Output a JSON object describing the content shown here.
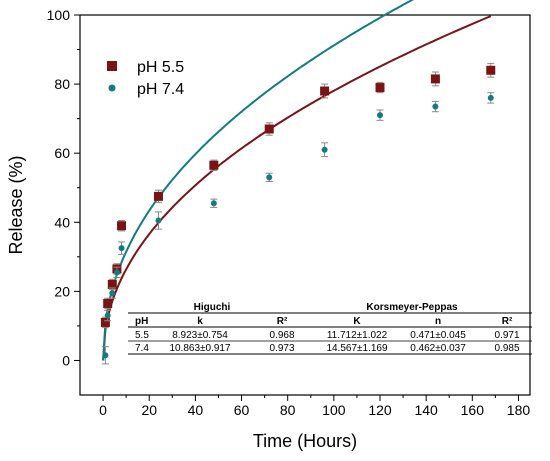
{
  "chart_data": {
    "type": "scatter",
    "xlabel": "Time (Hours)",
    "ylabel": "Release (%)",
    "xlim": [
      -10,
      185
    ],
    "ylim": [
      -10,
      100
    ],
    "x_ticks": [
      0,
      20,
      40,
      60,
      80,
      100,
      120,
      140,
      160,
      180
    ],
    "y_ticks": [
      0,
      20,
      40,
      60,
      80,
      100
    ],
    "legend_position": "top-left",
    "series": [
      {
        "name": "pH 5.5",
        "color": "#7a1414",
        "marker": "square",
        "x": [
          1,
          2,
          4,
          6,
          8,
          24,
          48,
          72,
          96,
          120,
          144,
          168
        ],
        "y": [
          11,
          16.5,
          22,
          26.5,
          39,
          47.5,
          56.5,
          67,
          78,
          79,
          81.5,
          84
        ],
        "error": [
          1.5,
          1.5,
          1.5,
          1.5,
          1.5,
          1.8,
          1.5,
          1.8,
          2,
          1.5,
          2,
          2
        ],
        "fit": {
          "k": 8.923,
          "n": 0.471
        }
      },
      {
        "name": "pH 7.4",
        "color": "#137c80",
        "marker": "circle",
        "x": [
          1,
          2,
          4,
          6,
          8,
          24,
          48,
          72,
          96,
          120,
          144,
          168
        ],
        "y": [
          1.5,
          13,
          19.5,
          25.5,
          32.5,
          40.5,
          45.5,
          53,
          61,
          71,
          73.5,
          76
        ],
        "error": [
          2.5,
          1.5,
          1.5,
          1.5,
          1.8,
          2.5,
          1.2,
          1.2,
          2,
          1.5,
          1.5,
          1.5
        ],
        "fit": {
          "k": 10.863,
          "n": 0.462
        }
      }
    ],
    "table": {
      "group_headers": [
        "Higuchi",
        "Korsmeyer-Peppas"
      ],
      "columns": [
        "pH",
        "k",
        "R²",
        "K",
        "n",
        "R²"
      ],
      "rows": [
        [
          "5.5",
          "8.923±0.754",
          "0.968",
          "11.712±1.022",
          "0.471±0.045",
          "0.971"
        ],
        [
          "7.4",
          "10.863±0.917",
          "0.973",
          "14.567±1.169",
          "0.462±0.037",
          "0.985"
        ]
      ]
    }
  }
}
